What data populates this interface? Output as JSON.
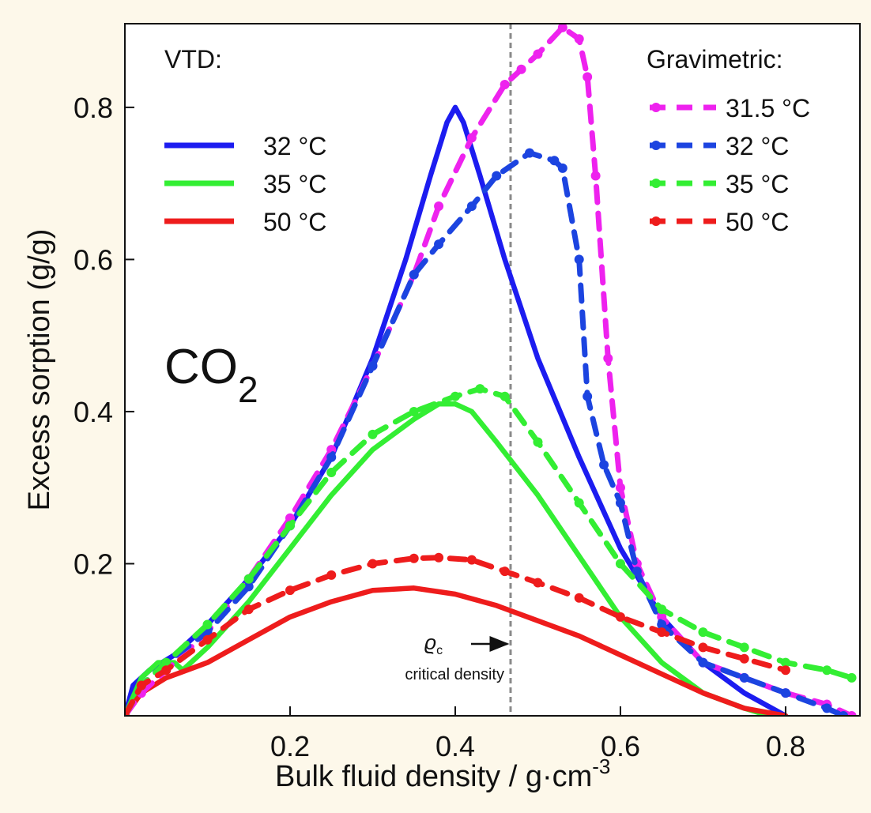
{
  "chart_data": {
    "type": "line",
    "xlabel": "Bulk fluid density / g·cm",
    "xlabel_sup": "-3",
    "ylabel": "Excess sorption (g/g)",
    "xlim": [
      0,
      0.89
    ],
    "ylim": [
      0,
      0.91
    ],
    "xticks": [
      0.2,
      0.4,
      0.6,
      0.8
    ],
    "xtick_labels": [
      "0.2",
      "0.4",
      "0.6",
      "0.8"
    ],
    "yticks": [
      0.2,
      0.4,
      0.6,
      0.8
    ],
    "ytick_labels": [
      "0.2",
      "0.4",
      "0.6",
      "0.8"
    ],
    "grid": false,
    "gas_label": "CO",
    "gas_label_sub": "2",
    "critical_density": {
      "x": 0.467,
      "label_symbol": "ϱ",
      "label_sub": "c",
      "label_text": "critical density"
    },
    "legend_vtd_title": "VTD:",
    "legend_grav_title": "Gravimetric:",
    "series": [
      {
        "name": "32 °C",
        "group": "VTD",
        "color": "#1c1cf0",
        "dashed": false,
        "x": [
          0.0,
          0.01,
          0.03,
          0.06,
          0.1,
          0.15,
          0.2,
          0.25,
          0.3,
          0.34,
          0.37,
          0.39,
          0.4,
          0.41,
          0.43,
          0.46,
          0.5,
          0.55,
          0.6,
          0.65,
          0.7,
          0.75,
          0.8
        ],
        "y": [
          0.0,
          0.04,
          0.06,
          0.08,
          0.12,
          0.18,
          0.25,
          0.34,
          0.47,
          0.6,
          0.71,
          0.78,
          0.8,
          0.78,
          0.71,
          0.6,
          0.47,
          0.34,
          0.22,
          0.13,
          0.07,
          0.03,
          0.0
        ]
      },
      {
        "name": "35 °C",
        "group": "VTD",
        "color": "#33ee33",
        "dashed": false,
        "x": [
          0.0,
          0.02,
          0.04,
          0.06,
          0.07,
          0.1,
          0.15,
          0.2,
          0.25,
          0.3,
          0.35,
          0.38,
          0.4,
          0.42,
          0.45,
          0.5,
          0.55,
          0.6,
          0.65,
          0.7,
          0.75,
          0.78
        ],
        "y": [
          0.0,
          0.05,
          0.07,
          0.07,
          0.06,
          0.09,
          0.15,
          0.22,
          0.29,
          0.35,
          0.39,
          0.41,
          0.41,
          0.4,
          0.36,
          0.29,
          0.21,
          0.13,
          0.07,
          0.03,
          0.01,
          0.0
        ]
      },
      {
        "name": "50 °C",
        "group": "VTD",
        "color": "#ee1c1c",
        "dashed": false,
        "x": [
          0.0,
          0.02,
          0.05,
          0.1,
          0.15,
          0.2,
          0.25,
          0.3,
          0.35,
          0.4,
          0.45,
          0.5,
          0.55,
          0.6,
          0.65,
          0.7,
          0.75,
          0.8
        ],
        "y": [
          0.0,
          0.03,
          0.05,
          0.07,
          0.1,
          0.13,
          0.15,
          0.165,
          0.168,
          0.16,
          0.145,
          0.125,
          0.105,
          0.08,
          0.055,
          0.03,
          0.01,
          0.0
        ]
      },
      {
        "name": "31.5 °C",
        "group": "Gravimetric",
        "color": "#ee22ee",
        "dashed": true,
        "x": [
          0.0,
          0.02,
          0.05,
          0.1,
          0.15,
          0.2,
          0.25,
          0.3,
          0.35,
          0.38,
          0.42,
          0.46,
          0.48,
          0.5,
          0.53,
          0.55,
          0.56,
          0.57,
          0.585,
          0.6,
          0.62,
          0.65,
          0.7,
          0.75,
          0.8,
          0.85,
          0.88
        ],
        "y": [
          0.0,
          0.03,
          0.06,
          0.11,
          0.18,
          0.26,
          0.35,
          0.46,
          0.58,
          0.67,
          0.76,
          0.83,
          0.85,
          0.87,
          0.905,
          0.89,
          0.84,
          0.71,
          0.47,
          0.3,
          0.2,
          0.13,
          0.07,
          0.05,
          0.03,
          0.015,
          0.0
        ]
      },
      {
        "name": "32 °C",
        "group": "Gravimetric",
        "color": "#1c44e0",
        "dashed": true,
        "x": [
          0.0,
          0.02,
          0.05,
          0.1,
          0.15,
          0.2,
          0.25,
          0.3,
          0.35,
          0.38,
          0.42,
          0.45,
          0.49,
          0.52,
          0.53,
          0.55,
          0.56,
          0.58,
          0.6,
          0.62,
          0.65,
          0.7,
          0.75,
          0.8,
          0.85,
          0.87
        ],
        "y": [
          0.0,
          0.04,
          0.07,
          0.11,
          0.17,
          0.25,
          0.34,
          0.46,
          0.58,
          0.62,
          0.67,
          0.71,
          0.74,
          0.73,
          0.72,
          0.6,
          0.42,
          0.33,
          0.28,
          0.19,
          0.12,
          0.07,
          0.05,
          0.03,
          0.01,
          0.0
        ]
      },
      {
        "name": "35 °C",
        "group": "Gravimetric",
        "color": "#33ee33",
        "dashed": true,
        "x": [
          0.0,
          0.02,
          0.05,
          0.1,
          0.15,
          0.2,
          0.25,
          0.3,
          0.35,
          0.4,
          0.43,
          0.46,
          0.5,
          0.55,
          0.6,
          0.65,
          0.7,
          0.75,
          0.8,
          0.85,
          0.88
        ],
        "y": [
          0.0,
          0.04,
          0.07,
          0.12,
          0.18,
          0.25,
          0.32,
          0.37,
          0.4,
          0.42,
          0.43,
          0.42,
          0.36,
          0.28,
          0.2,
          0.14,
          0.11,
          0.09,
          0.07,
          0.06,
          0.05
        ]
      },
      {
        "name": "50 °C",
        "group": "Gravimetric",
        "color": "#ee1c1c",
        "dashed": true,
        "x": [
          0.0,
          0.02,
          0.05,
          0.1,
          0.15,
          0.2,
          0.25,
          0.3,
          0.35,
          0.38,
          0.42,
          0.46,
          0.5,
          0.55,
          0.6,
          0.65,
          0.7,
          0.75,
          0.8
        ],
        "y": [
          0.0,
          0.04,
          0.06,
          0.1,
          0.14,
          0.165,
          0.185,
          0.2,
          0.207,
          0.208,
          0.205,
          0.19,
          0.175,
          0.155,
          0.13,
          0.11,
          0.09,
          0.075,
          0.06
        ]
      }
    ]
  }
}
